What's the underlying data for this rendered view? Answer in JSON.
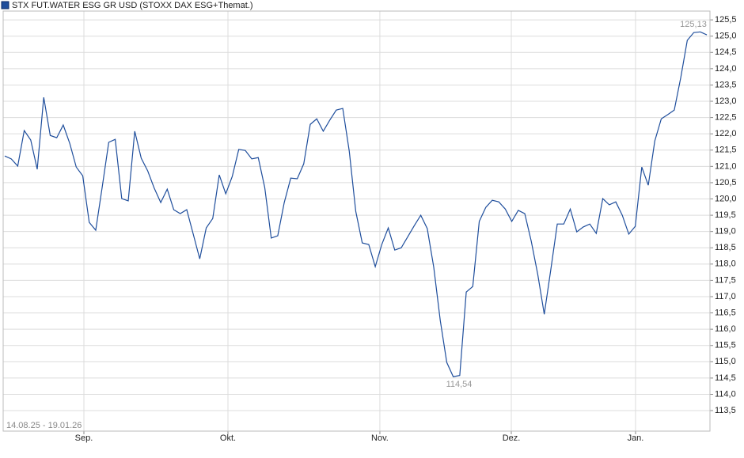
{
  "chart_data": {
    "type": "line",
    "title": "STX FUT.WATER ESG GR USD (STOXX DAX ESG+Themat.)",
    "date_range": "14.08.25 - 19.01.26",
    "annotations": [
      "125,13",
      "114,54"
    ],
    "series": [
      {
        "name": "STX FUT.WATER ESG GR USD",
        "color": "#1f4e9c",
        "values": [
          121.32,
          121.23,
          121.01,
          122.1,
          121.81,
          120.91,
          123.12,
          121.95,
          121.88,
          122.27,
          121.71,
          120.98,
          120.71,
          119.28,
          119.04,
          120.37,
          121.74,
          121.83,
          120.01,
          119.94,
          122.08,
          121.25,
          120.86,
          120.33,
          119.89,
          120.3,
          119.67,
          119.55,
          119.67,
          118.92,
          118.16,
          119.11,
          119.4,
          120.74,
          120.16,
          120.69,
          121.52,
          121.49,
          121.23,
          121.27,
          120.35,
          118.8,
          118.87,
          119.89,
          120.64,
          120.62,
          121.08,
          122.29,
          122.46,
          122.08,
          122.42,
          122.73,
          122.78,
          121.47,
          119.62,
          118.65,
          118.6,
          117.92,
          118.6,
          119.11,
          118.43,
          118.5,
          118.84,
          119.18,
          119.5,
          119.09,
          117.9,
          116.27,
          114.98,
          114.54,
          114.58,
          117.14,
          117.31,
          119.31,
          119.74,
          119.96,
          119.91,
          119.69,
          119.31,
          119.65,
          119.55,
          118.7,
          117.68,
          116.46,
          117.82,
          119.23,
          119.23,
          119.69,
          118.99,
          119.14,
          119.23,
          118.94,
          120.01,
          119.82,
          119.91,
          119.5,
          118.92,
          119.16,
          120.98,
          120.42,
          121.78,
          122.46,
          122.59,
          122.73,
          123.73,
          124.87,
          125.11,
          125.13,
          125.04
        ]
      }
    ],
    "xlim": [
      -0.24,
      108.49
    ],
    "xticks": [
      {
        "value": 12.18,
        "label": "Sep."
      },
      {
        "value": 34.34,
        "label": "Okt."
      },
      {
        "value": 57.71,
        "label": "Nov."
      },
      {
        "value": 77.93,
        "label": "Dez."
      },
      {
        "value": 97.04,
        "label": "Jan."
      }
    ],
    "ylim": [
      112.87,
      125.77
    ],
    "yticks": [
      {
        "value": 113.5,
        "label": "113,5"
      },
      {
        "value": 114,
        "label": "114,0"
      },
      {
        "value": 114.5,
        "label": "114,5"
      },
      {
        "value": 115,
        "label": "115,0"
      },
      {
        "value": 115.5,
        "label": "115,5"
      },
      {
        "value": 116,
        "label": "116,0"
      },
      {
        "value": 116.5,
        "label": "116,5"
      },
      {
        "value": 117,
        "label": "117,0"
      },
      {
        "value": 117.5,
        "label": "117,5"
      },
      {
        "value": 118,
        "label": "118,0"
      },
      {
        "value": 118.5,
        "label": "118,5"
      },
      {
        "value": 119,
        "label": "119,0"
      },
      {
        "value": 119.5,
        "label": "119,5"
      },
      {
        "value": 120,
        "label": "120,0"
      },
      {
        "value": 120.5,
        "label": "120,5"
      },
      {
        "value": 121,
        "label": "121,0"
      },
      {
        "value": 121.5,
        "label": "121,5"
      },
      {
        "value": 122,
        "label": "122,0"
      },
      {
        "value": 122.5,
        "label": "122,5"
      },
      {
        "value": 123,
        "label": "123,0"
      },
      {
        "value": 123.5,
        "label": "123,5"
      },
      {
        "value": 124,
        "label": "124,0"
      },
      {
        "value": 124.5,
        "label": "124,5"
      },
      {
        "value": 125,
        "label": "125,0"
      },
      {
        "value": 125.5,
        "label": "125,5"
      }
    ],
    "grid": true
  }
}
